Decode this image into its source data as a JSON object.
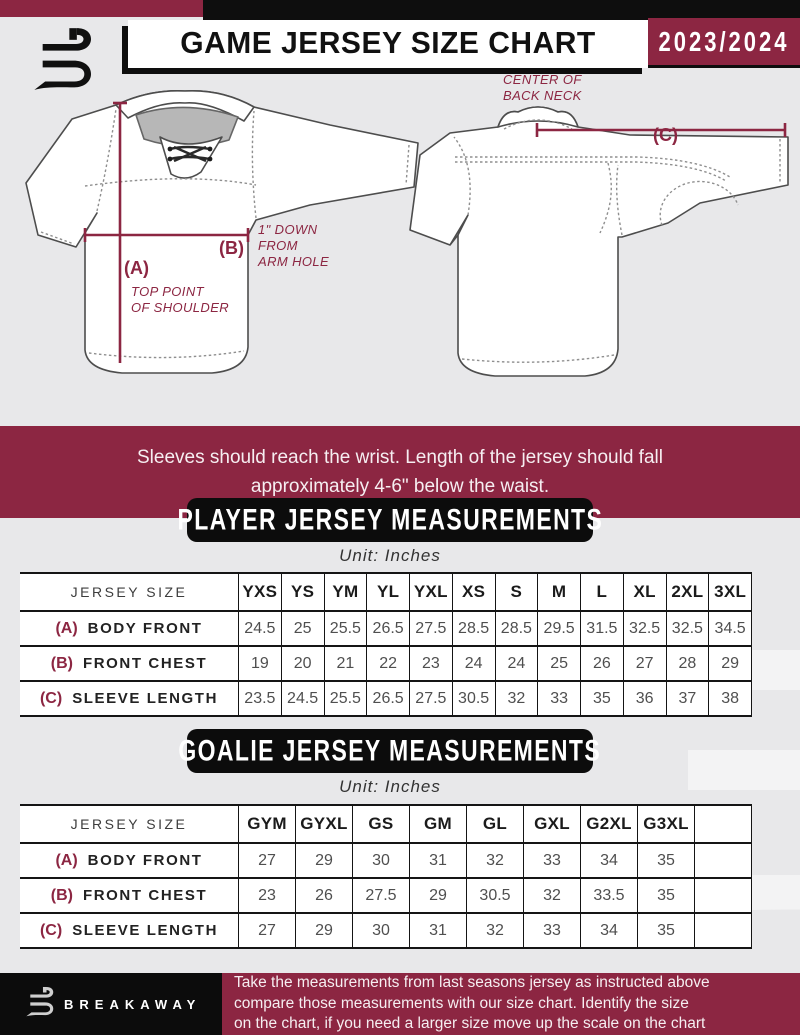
{
  "colors": {
    "maroon": "#8c2642",
    "black": "#0e0e0e",
    "page_bg": "#e8e8ea"
  },
  "header": {
    "title": "GAME JERSEY SIZE CHART",
    "season": "2023/2024"
  },
  "diagram": {
    "front": {
      "a_key": "(A)",
      "a_note": "TOP POINT\nOF SHOULDER",
      "b_key": "(B)",
      "b_note": "1\" DOWN\nFROM\nARM HOLE"
    },
    "back": {
      "c_key": "(C)",
      "c_note": "CENTER OF\nBACK NECK"
    }
  },
  "notice": "Sleeves should reach the wrist. Length of the jersey should fall\napproximately 4-6\" below the waist.",
  "player_table": {
    "title": "PLAYER JERSEY MEASUREMENTS",
    "unit": "Unit: Inches",
    "corner": "JERSEY SIZE",
    "sizes": [
      "YXS",
      "YS",
      "YM",
      "YL",
      "YXL",
      "XS",
      "S",
      "M",
      "L",
      "XL",
      "2XL",
      "3XL"
    ],
    "rows": [
      {
        "key": "(A)",
        "label": "BODY FRONT",
        "values": [
          "24.5",
          "25",
          "25.5",
          "26.5",
          "27.5",
          "28.5",
          "28.5",
          "29.5",
          "31.5",
          "32.5",
          "32.5",
          "34.5"
        ]
      },
      {
        "key": "(B)",
        "label": "FRONT CHEST",
        "values": [
          "19",
          "20",
          "21",
          "22",
          "23",
          "24",
          "24",
          "25",
          "26",
          "27",
          "28",
          "29"
        ]
      },
      {
        "key": "(C)",
        "label": "SLEEVE LENGTH",
        "values": [
          "23.5",
          "24.5",
          "25.5",
          "26.5",
          "27.5",
          "30.5",
          "32",
          "33",
          "35",
          "36",
          "37",
          "38"
        ]
      }
    ]
  },
  "goalie_table": {
    "title": "GOALIE JERSEY MEASUREMENTS",
    "unit": "Unit: Inches",
    "corner": "JERSEY SIZE",
    "sizes": [
      "GYM",
      "GYXL",
      "GS",
      "GM",
      "GL",
      "GXL",
      "G2XL",
      "G3XL",
      ""
    ],
    "rows": [
      {
        "key": "(A)",
        "label": "BODY FRONT",
        "values": [
          "27",
          "29",
          "30",
          "31",
          "32",
          "33",
          "34",
          "35",
          ""
        ]
      },
      {
        "key": "(B)",
        "label": "FRONT CHEST",
        "values": [
          "23",
          "26",
          "27.5",
          "29",
          "30.5",
          "32",
          "33.5",
          "35",
          ""
        ]
      },
      {
        "key": "(C)",
        "label": "SLEEVE LENGTH",
        "values": [
          "27",
          "29",
          "30",
          "31",
          "32",
          "33",
          "34",
          "35",
          ""
        ]
      }
    ]
  },
  "footer": {
    "brand": "BREAKAWAY",
    "text": "Take the measurements from last seasons jersey as instructed above\ncompare those measurements  with our size chart. Identify the size\non the chart, if you need a larger size move up the scale on the chart"
  }
}
